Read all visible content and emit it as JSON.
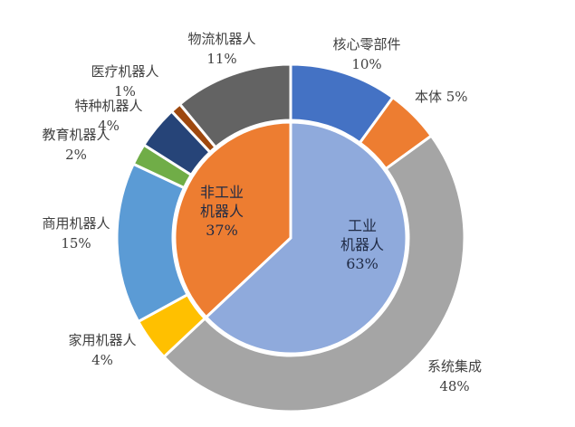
{
  "chart_data": {
    "type": "pie",
    "inner_ring": {
      "slices": [
        {
          "name": "工业机器人",
          "label_lines": [
            "工业",
            "机器人"
          ],
          "value": 63,
          "value_label": "63%",
          "color": "#8FAADC"
        },
        {
          "name": "非工业机器人",
          "label_lines": [
            "非工业",
            "机器人"
          ],
          "value": 37,
          "value_label": "37%",
          "color": "#ED7D31"
        }
      ]
    },
    "outer_ring": {
      "slices": [
        {
          "name": "核心零部件",
          "value": 10,
          "value_label": "10%",
          "color": "#4472C4"
        },
        {
          "name": "本体",
          "value": 5,
          "value_label": "5%",
          "color": "#ED7D31"
        },
        {
          "name": "系统集成",
          "value": 48,
          "value_label": "48%",
          "color": "#A5A5A5"
        },
        {
          "name": "家用机器人",
          "value": 4,
          "value_label": "4%",
          "color": "#FFC000"
        },
        {
          "name": "商用机器人",
          "value": 15,
          "value_label": "15%",
          "color": "#5B9BD5"
        },
        {
          "name": "教育机器人",
          "value": 2,
          "value_label": "2%",
          "color": "#70AD47"
        },
        {
          "name": "特种机器人",
          "value": 4,
          "value_label": "4%",
          "color": "#264478"
        },
        {
          "name": "医疗机器人",
          "value": 1,
          "value_label": "1%",
          "color": "#9E480E"
        },
        {
          "name": "物流机器人",
          "value": 11,
          "value_label": "11%",
          "color": "#636363"
        }
      ]
    },
    "start_angle_deg": 0,
    "direction": "clockwise"
  }
}
